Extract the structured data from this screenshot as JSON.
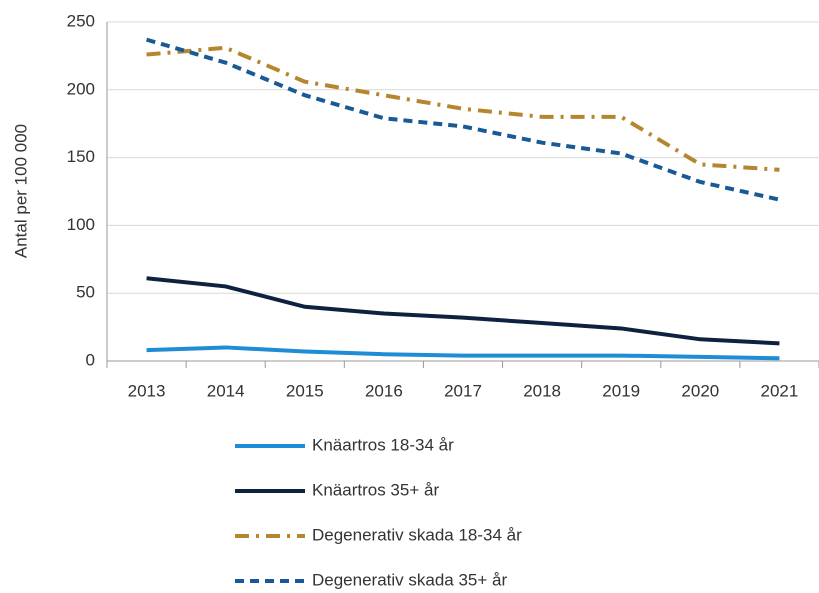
{
  "chart_data": {
    "type": "line",
    "y_label": "Antal per 100 000",
    "categories": [
      "2013",
      "2014",
      "2015",
      "2016",
      "2017",
      "2018",
      "2019",
      "2020",
      "2021"
    ],
    "series": [
      {
        "name": "Knäartros 18-34 år",
        "color": "#1f8dd6",
        "style": "solid",
        "values": [
          8,
          10,
          7,
          5,
          4,
          4,
          4,
          3,
          2
        ]
      },
      {
        "name": "Knäartros 35+ år",
        "color": "#0d2240",
        "style": "solid",
        "values": [
          61,
          55,
          40,
          35,
          32,
          28,
          24,
          16,
          13
        ]
      },
      {
        "name": "Degenerativ skada 18-34 år",
        "color": "#b5862e",
        "style": "dashdot",
        "values": [
          226,
          231,
          206,
          196,
          186,
          180,
          180,
          145,
          141
        ]
      },
      {
        "name": "Degenerativ skada 35+ år",
        "color": "#185a96",
        "style": "dashed",
        "values": [
          237,
          220,
          196,
          179,
          173,
          161,
          153,
          132,
          119
        ]
      }
    ],
    "ylim": [
      0,
      250
    ],
    "yticks": [
      0,
      50,
      100,
      150,
      200,
      250
    ],
    "grid": true,
    "legend": "bottom"
  }
}
